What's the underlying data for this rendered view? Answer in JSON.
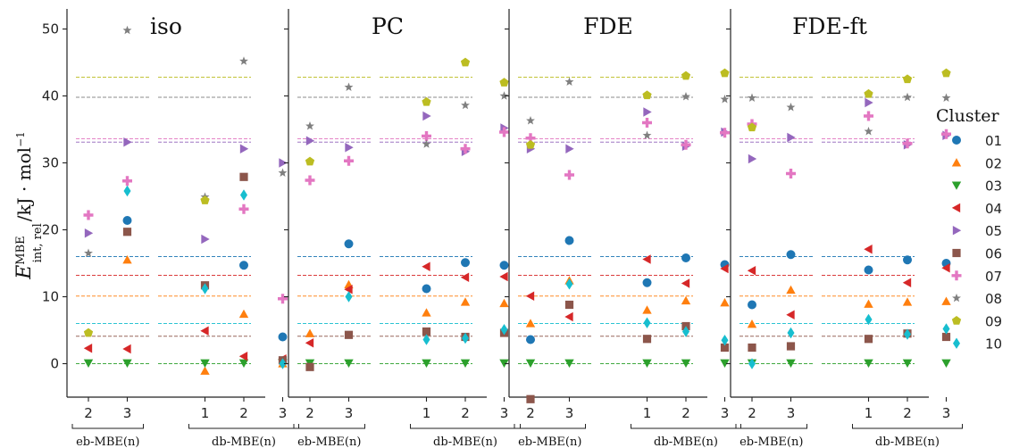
{
  "chart_data": {
    "type": "scatter",
    "ylabel_main": "E",
    "ylabel_sup": "MBE",
    "ylabel_sub": "int, rel",
    "ylabel_units": "/kJ · mol",
    "ylabel_units_exp": "−1",
    "ylim": [
      -5,
      53
    ],
    "yticks": [
      0,
      10,
      20,
      30,
      40,
      50
    ],
    "x_positions": [
      0,
      1,
      3,
      4,
      5
    ],
    "x_tick_labels": [
      "2",
      "3",
      "1",
      "2",
      "3"
    ],
    "groups": [
      {
        "label": "eb-MBE(n)",
        "from": 0,
        "to": 1
      },
      {
        "label": "db-MBE(n)",
        "from": 3,
        "to": 5
      }
    ],
    "legend_title": "Cluster",
    "series": [
      {
        "name": "01",
        "color": "#1f77b4",
        "marker": "circle"
      },
      {
        "name": "02",
        "color": "#ff7f0e",
        "marker": "triangle-up"
      },
      {
        "name": "03",
        "color": "#2ca02c",
        "marker": "triangle-down"
      },
      {
        "name": "04",
        "color": "#d62728",
        "marker": "triangle-left"
      },
      {
        "name": "05",
        "color": "#9467bd",
        "marker": "triangle-right"
      },
      {
        "name": "06",
        "color": "#8c564b",
        "marker": "square"
      },
      {
        "name": "07",
        "color": "#e377c2",
        "marker": "plus"
      },
      {
        "name": "08",
        "color": "#7f7f7f",
        "marker": "star"
      },
      {
        "name": "09",
        "color": "#bcbd22",
        "marker": "pentagon"
      },
      {
        "name": "10",
        "color": "#17becf",
        "marker": "diamond"
      }
    ],
    "reference_lines": [
      {
        "series": "01",
        "y": 16.0
      },
      {
        "series": "02",
        "y": 10.1
      },
      {
        "series": "03",
        "y": 0.0
      },
      {
        "series": "04",
        "y": 13.2
      },
      {
        "series": "05",
        "y": 33.1
      },
      {
        "series": "06",
        "y": 4.1
      },
      {
        "series": "07",
        "y": 33.6
      },
      {
        "series": "08",
        "y": 39.8
      },
      {
        "series": "09",
        "y": 42.8
      },
      {
        "series": "10",
        "y": 6.0
      }
    ],
    "panels": [
      {
        "title": "iso",
        "points": {
          "01": [
            null,
            21.4,
            null,
            14.7,
            4.0
          ],
          "02": [
            null,
            15.5,
            -1.1,
            7.4,
            0.0
          ],
          "03": [
            0.1,
            0.1,
            0.1,
            0.1,
            0.1
          ],
          "04": [
            2.3,
            2.2,
            4.9,
            1.1,
            0.7
          ],
          "05": [
            19.5,
            33.1,
            18.6,
            32.1,
            30.0
          ],
          "06": [
            null,
            19.7,
            11.7,
            27.9,
            0.5
          ],
          "07": [
            22.2,
            27.3,
            null,
            23.1,
            9.7
          ],
          "08": [
            16.5,
            49.8,
            24.9,
            45.2,
            28.5
          ],
          "09": [
            4.6,
            null,
            24.4,
            null,
            null
          ],
          "10": [
            null,
            25.8,
            11.2,
            25.2,
            0.0
          ]
        }
      },
      {
        "title": "PC",
        "points": {
          "01": [
            null,
            17.9,
            11.2,
            15.1,
            14.7
          ],
          "02": [
            4.5,
            11.8,
            7.6,
            9.2,
            9.0
          ],
          "03": [
            0.1,
            0.1,
            0.1,
            0.1,
            0.1
          ],
          "04": [
            3.1,
            11.1,
            14.5,
            12.9,
            13.0
          ],
          "05": [
            33.3,
            32.3,
            37.0,
            31.7,
            35.2
          ],
          "06": [
            -0.5,
            4.3,
            4.8,
            4.0,
            4.6
          ],
          "07": [
            27.4,
            30.3,
            34.0,
            32.1,
            34.6
          ],
          "08": [
            35.5,
            41.3,
            32.8,
            38.6,
            40.0
          ],
          "09": [
            30.2,
            null,
            39.1,
            45.0,
            42.0
          ],
          "10": [
            null,
            10.0,
            3.6,
            3.8,
            5.1
          ]
        }
      },
      {
        "title": "FDE",
        "points": {
          "01": [
            3.6,
            18.4,
            12.1,
            15.8,
            14.8
          ],
          "02": [
            6.0,
            12.4,
            8.0,
            9.4,
            9.1
          ],
          "03": [
            0.1,
            0.1,
            0.1,
            0.1,
            0.1
          ],
          "04": [
            10.1,
            7.0,
            15.6,
            12.0,
            14.2
          ],
          "05": [
            32.1,
            32.1,
            37.6,
            32.5,
            34.6
          ],
          "06": [
            -5.3,
            8.8,
            3.7,
            5.6,
            2.4
          ],
          "07": [
            33.7,
            28.2,
            36.0,
            32.7,
            34.5
          ],
          "08": [
            36.3,
            42.1,
            34.1,
            39.9,
            39.5
          ],
          "09": [
            32.7,
            null,
            40.1,
            43.0,
            43.4
          ],
          "10": [
            null,
            11.9,
            6.1,
            4.8,
            3.5
          ]
        }
      },
      {
        "title": "FDE-ft",
        "points": {
          "01": [
            8.8,
            16.3,
            14.0,
            15.5,
            15.0
          ],
          "02": [
            5.9,
            11.0,
            8.9,
            9.2,
            9.3
          ],
          "03": [
            0.1,
            0.1,
            0.1,
            0.1,
            0.1
          ],
          "04": [
            13.9,
            7.3,
            17.1,
            12.1,
            14.3
          ],
          "05": [
            30.6,
            33.8,
            39.0,
            32.7,
            34.1
          ],
          "06": [
            2.4,
            2.6,
            3.7,
            4.5,
            4.0
          ],
          "07": [
            35.8,
            28.4,
            37.0,
            32.9,
            34.3
          ],
          "08": [
            39.7,
            38.3,
            34.7,
            39.8,
            39.7
          ],
          "09": [
            35.3,
            null,
            40.3,
            42.5,
            43.4
          ],
          "10": [
            0.0,
            4.6,
            6.6,
            4.4,
            5.2
          ]
        }
      }
    ]
  }
}
